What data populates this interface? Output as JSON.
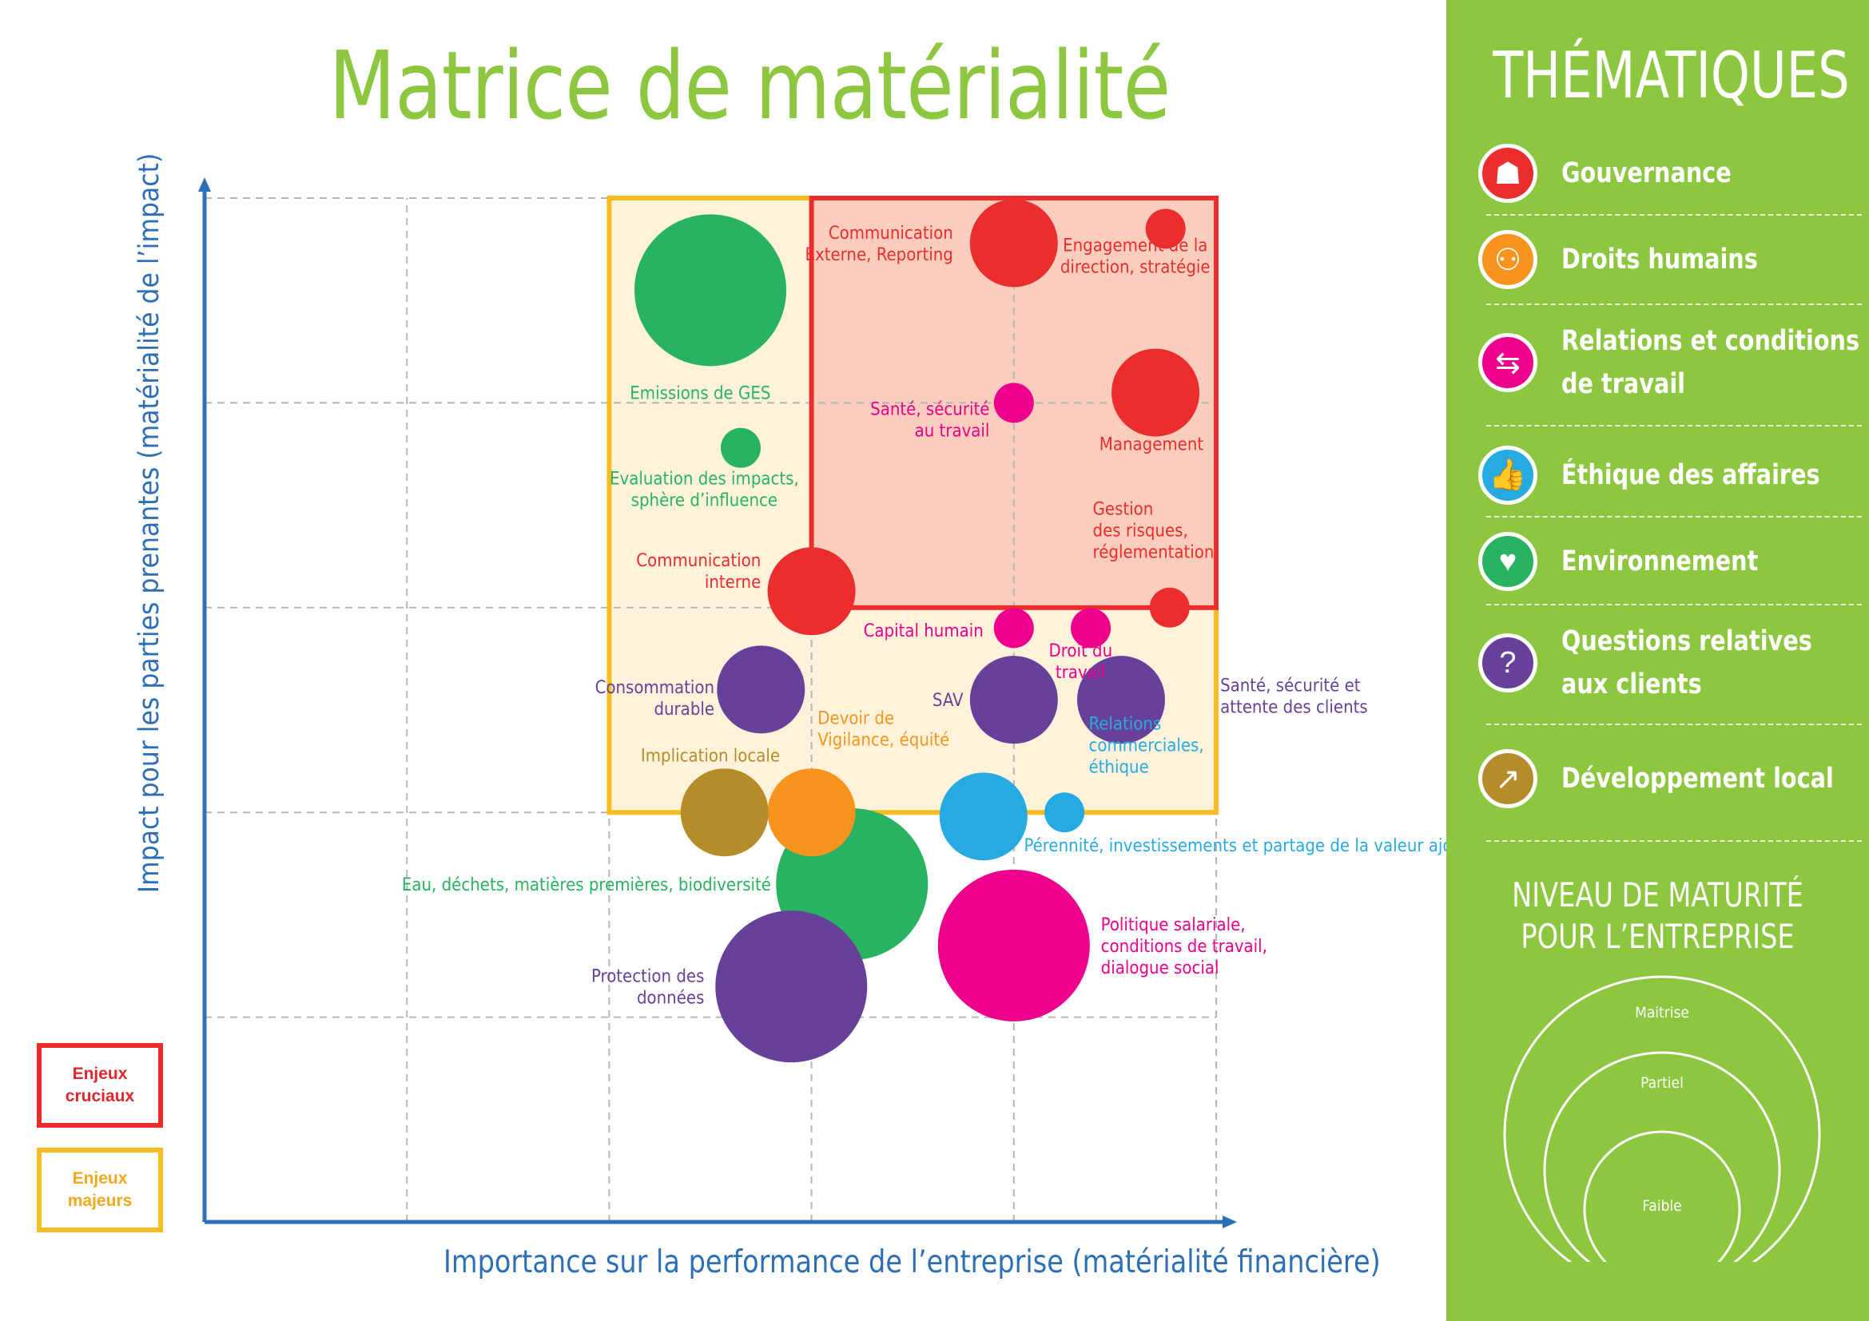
{
  "title": "Matrice de matérialité",
  "chart_data": {
    "type": "scatter",
    "subtype": "bubble",
    "xlabel": "Importance sur la performance de l’entreprise (matérialité financière)",
    "ylabel": "Impact pour les parties prenantes (matérialité de l’impact)",
    "xlim": [
      0,
      5
    ],
    "ylim": [
      0,
      5
    ],
    "grid": true,
    "size_levels": [
      "Faible",
      "Partiel",
      "Maitrise"
    ],
    "zones": [
      {
        "label": "Enjeux majeurs",
        "color": "#f7bd23",
        "x": [
          2,
          5
        ],
        "y": [
          2,
          5
        ]
      },
      {
        "label": "Enjeux cruciaux",
        "color": "#ec2d2d",
        "x": [
          3,
          5
        ],
        "y": [
          3,
          5
        ]
      }
    ],
    "points": [
      {
        "label": "Emissions de GES",
        "lines": [
          "Emissions de GES"
        ],
        "x": 2.5,
        "y": 4.55,
        "level": "Maitrise",
        "theme": "Environnement",
        "lx": -0.05,
        "ly": -0.5,
        "anchor": "middle"
      },
      {
        "label": "Communication Externe, Reporting",
        "lines": [
          "Communication",
          "Externe, Reporting"
        ],
        "x": 4.0,
        "y": 4.78,
        "level": "Partiel",
        "theme": "Gouvernance",
        "lx": -0.3,
        "ly": 0.0,
        "anchor": "end"
      },
      {
        "label": "Engagement de la direction, stratégie",
        "lines": [
          "Engagement de la",
          "direction, stratégie"
        ],
        "x": 4.75,
        "y": 4.85,
        "level": "Faible",
        "theme": "Gouvernance",
        "lx": -0.15,
        "ly": -0.13,
        "anchor": "middle"
      },
      {
        "label": "Santé, sécurité au travail",
        "lines": [
          "Santé, sécurité",
          "au travail"
        ],
        "x": 4.0,
        "y": 4.0,
        "level": "Faible",
        "theme": "Relations et conditions de travail",
        "lx": -0.12,
        "ly": -0.08,
        "anchor": "end"
      },
      {
        "label": "Management",
        "lines": [
          "Management"
        ],
        "x": 4.7,
        "y": 4.05,
        "level": "Partiel",
        "theme": "Gouvernance",
        "lx": -0.02,
        "ly": -0.25,
        "anchor": "middle"
      },
      {
        "label": "Evaluation des impacts, sphère d’influence",
        "lines": [
          "Evaluation des impacts,",
          "sphère d’influence"
        ],
        "x": 2.65,
        "y": 3.78,
        "level": "Faible",
        "theme": "Environnement",
        "lx": -0.18,
        "ly": -0.2,
        "anchor": "middle"
      },
      {
        "label": "Gestion des risques, réglementation",
        "lines": [
          "Gestion",
          "des risques,",
          "réglementation"
        ],
        "x": 4.77,
        "y": 3.0,
        "level": "Faible",
        "theme": "Gouvernance",
        "lx": -0.38,
        "ly": 0.38,
        "anchor": "start"
      },
      {
        "label": "Communication interne",
        "lines": [
          "Communication",
          "interne"
        ],
        "x": 3.0,
        "y": 3.08,
        "level": "Partiel",
        "theme": "Gouvernance",
        "lx": -0.25,
        "ly": 0.1,
        "anchor": "end"
      },
      {
        "label": "Capital humain",
        "lines": [
          "Capital humain"
        ],
        "x": 4.0,
        "y": 2.9,
        "level": "Faible",
        "theme": "Relations et conditions de travail",
        "lx": -0.15,
        "ly": -0.01,
        "anchor": "end"
      },
      {
        "label": "Droit du travail",
        "lines": [
          "Droit du",
          "travail"
        ],
        "x": 4.38,
        "y": 2.9,
        "level": "Faible",
        "theme": "Relations et conditions de travail",
        "lx": -0.05,
        "ly": -0.16,
        "anchor": "middle"
      },
      {
        "label": "Consommation durable",
        "lines": [
          "Consommation",
          "durable"
        ],
        "x": 2.75,
        "y": 2.6,
        "level": "Partiel",
        "theme": "Questions relatives aux clients",
        "lx": -0.23,
        "ly": -0.04,
        "anchor": "end"
      },
      {
        "label": "SAV",
        "lines": [
          "SAV"
        ],
        "x": 4.0,
        "y": 2.55,
        "level": "Partiel",
        "theme": "Questions relatives aux clients",
        "lx": -0.25,
        "ly": 0.0,
        "anchor": "end"
      },
      {
        "label": "Santé, sécurité et attente des clients",
        "lines": [
          "Santé, sécurité et",
          "attente des clients"
        ],
        "x": 4.53,
        "y": 2.55,
        "level": "Partiel",
        "theme": "Questions relatives aux clients",
        "lx": 0.49,
        "ly": 0.02,
        "anchor": "start"
      },
      {
        "label": "Devoir de Vigilance, équité",
        "lines": [
          "Devoir de",
          "Vigilance, équité"
        ],
        "x": 3.0,
        "y": 2.0,
        "level": "Partiel",
        "theme": "Droits humains",
        "lx": 0.03,
        "ly": 0.41,
        "anchor": "start"
      },
      {
        "label": "Implication locale",
        "lines": [
          "Implication locale"
        ],
        "x": 2.57,
        "y": 2.0,
        "level": "Partiel",
        "theme": "Développement local",
        "lx": -0.07,
        "ly": 0.28,
        "anchor": "middle"
      },
      {
        "label": "Relations commerciales, éthique",
        "lines": [
          "Relations",
          "commerciales,",
          "éthique"
        ],
        "x": 3.85,
        "y": 1.98,
        "level": "Partiel",
        "theme": "Éthique des affaires",
        "lx": 0.52,
        "ly": 0.35,
        "anchor": "start"
      },
      {
        "label": "Pérennité, investissements et partage de la valeur ajoutée",
        "lines": [
          "Pérennité, investissements et partage de la valeur ajoutée"
        ],
        "x": 4.25,
        "y": 2.0,
        "level": "Faible",
        "theme": "Éthique des affaires",
        "lx": -0.2,
        "ly": -0.16,
        "anchor": "start"
      },
      {
        "label": "Eau, déchets, matières premières, biodiversité",
        "lines": [
          "Eau, déchets, matières premières, biodiversité"
        ],
        "x": 3.2,
        "y": 1.65,
        "level": "Maitrise",
        "theme": "Environnement",
        "lx": -0.4,
        "ly": 0.0,
        "anchor": "end"
      },
      {
        "label": "Politique salariale, conditions de travail, dialogue social",
        "lines": [
          "Politique salariale,",
          "conditions de travail,",
          "dialogue social"
        ],
        "x": 4.0,
        "y": 1.35,
        "level": "Maitrise",
        "theme": "Relations et conditions de travail",
        "lx": 0.43,
        "ly": 0.0,
        "anchor": "start"
      },
      {
        "label": "Protection des données",
        "lines": [
          "Protection des",
          "données"
        ],
        "x": 2.9,
        "y": 1.15,
        "level": "Maitrise",
        "theme": "Questions relatives aux clients",
        "lx": -0.43,
        "ly": 0.0,
        "anchor": "end"
      }
    ]
  },
  "legend": {
    "cruciaux": "Enjeux\ncruciaux",
    "majeurs": "Enjeux\nmajeurs"
  },
  "panel": {
    "title": "THÉMATIQUES",
    "themes": [
      {
        "name": "Gouvernance",
        "line1": "Gouvernance",
        "line2": "",
        "color": "#ec2d2d",
        "icon": "people-table-icon",
        "glyph": "☗"
      },
      {
        "name": "Droits humains",
        "line1": "Droits humains",
        "line2": "",
        "color": "#f7941d",
        "icon": "two-people-icon",
        "glyph": "⚇"
      },
      {
        "name": "Relations et conditions de travail",
        "line1": "Relations et conditions",
        "line2": "de travail",
        "color": "#ec008c",
        "icon": "handshake-people-icon",
        "glyph": "⇆"
      },
      {
        "name": "Éthique des affaires",
        "line1": "Éthique des affaires",
        "line2": "",
        "color": "#27aae1",
        "icon": "thumbs-up-icon",
        "glyph": "👍"
      },
      {
        "name": "Environnement",
        "line1": "Environnement",
        "line2": "",
        "color": "#27b35f",
        "icon": "heart-hands-icon",
        "glyph": "♥"
      },
      {
        "name": "Questions relatives aux clients",
        "line1": "Questions relatives",
        "line2": "aux clients",
        "color": "#674199",
        "icon": "question-bubble-icon",
        "glyph": "?"
      },
      {
        "name": "Développement local",
        "line1": "Développement local",
        "line2": "",
        "color": "#b58c2a",
        "icon": "growth-chart-icon",
        "glyph": "↗"
      }
    ],
    "maturity_title_1": "NIVEAU DE MATURITÉ",
    "maturity_title_2": "POUR L’ENTREPRISE",
    "maturity_levels": [
      "Maitrise",
      "Partiel",
      "Faible"
    ]
  }
}
